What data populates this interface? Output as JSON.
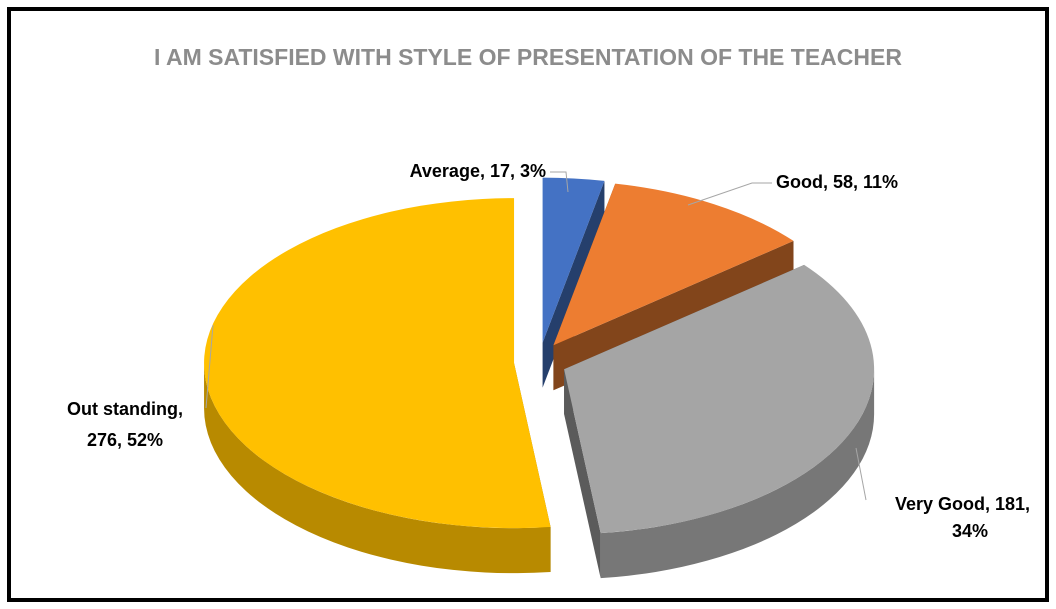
{
  "chart_data": {
    "type": "pie3d",
    "title": "I AM SATISFIED WITH STYLE OF PRESENTATION OF THE TEACHER",
    "categories": [
      "Average",
      "Good",
      "Very Good",
      "Out standing"
    ],
    "values": [
      17,
      58,
      181,
      276
    ],
    "value_labels": [
      [
        "Average, 17, 3%"
      ],
      [
        "Good, 58, 11%"
      ],
      [
        "Very Good, 181,",
        "34%"
      ],
      [
        "Out standing,",
        "276, 52%"
      ]
    ],
    "colors": [
      "#4472c4",
      "#ed7d31",
      "#a5a5a5",
      "#ffc000"
    ],
    "exploded": true
  }
}
